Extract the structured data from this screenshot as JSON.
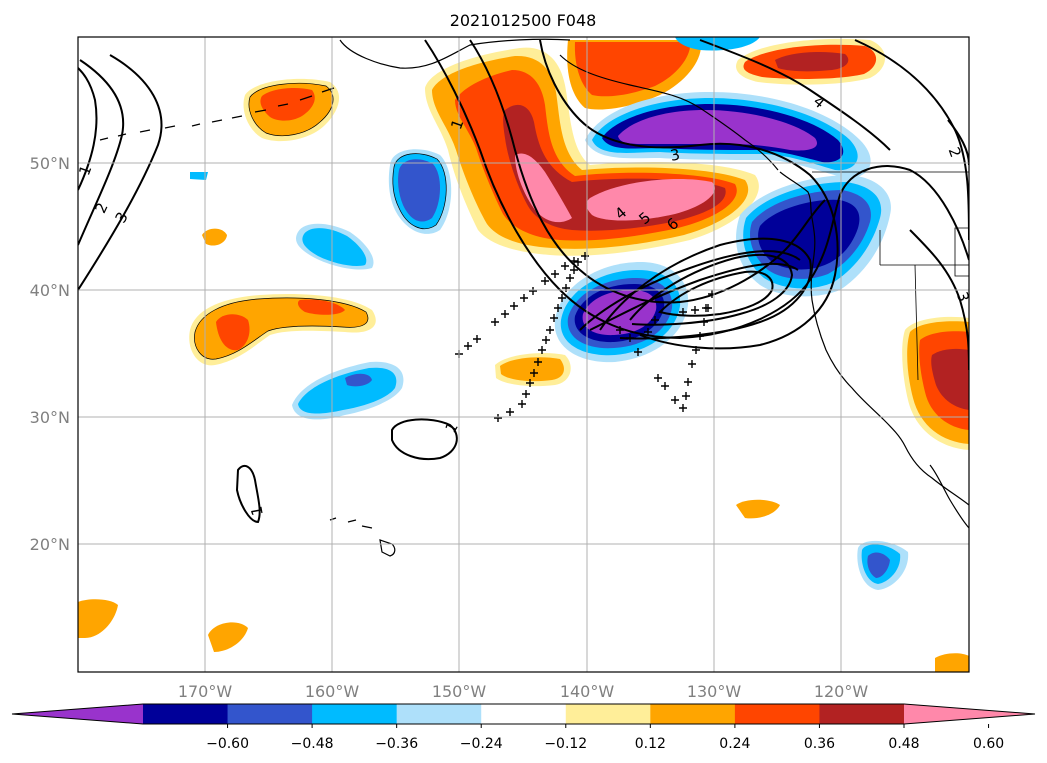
{
  "title": "2021012500 F048",
  "lat_labels": [
    "50°N",
    "40°N",
    "30°N",
    "20°N"
  ],
  "lon_labels": [
    "170°W",
    "160°W",
    "150°W",
    "140°W",
    "130°W",
    "120°W"
  ],
  "colorbar": {
    "colors": [
      "#9933cc",
      "#000099",
      "#3355cc",
      "#00bbff",
      "#aee0fa",
      "#ffffff",
      "#ffee99",
      "#ffa500",
      "#ff4500",
      "#b22222",
      "#ff88aa"
    ],
    "tick_labels": [
      "−0.60",
      "−0.48",
      "−0.36",
      "−0.24",
      "−0.12",
      "0.12",
      "0.24",
      "0.36",
      "0.48",
      "0.60"
    ]
  },
  "contour_labels": [
    "1",
    "2",
    "3",
    "1",
    "1",
    "1",
    "3",
    "4",
    "5",
    "6",
    "4",
    "2",
    "3"
  ],
  "colors": {
    "purple": "#9933cc",
    "navy": "#000099",
    "royal": "#3355cc",
    "sky": "#00bbff",
    "pale_blue": "#aee0fa",
    "pale_yellow": "#ffee99",
    "orange": "#ffa500",
    "red_orange": "#ff4500",
    "firebrick": "#b22222",
    "pink": "#ff88aa"
  }
}
